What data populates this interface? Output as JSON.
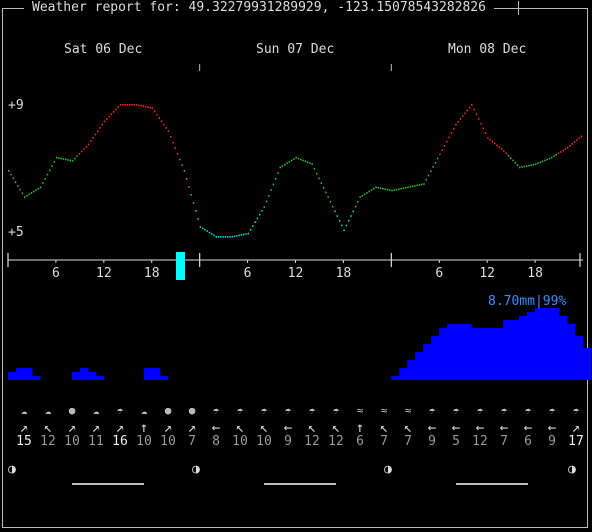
{
  "title": "Weather report for: 49.32279931289929, -123.15078543282826",
  "days": [
    "Sat 06 Dec",
    "Sun 07 Dec",
    "Mon 08 Dec"
  ],
  "temp_axis": {
    "max_label": "+9",
    "min_label": "+5",
    "max": 9,
    "min": 5
  },
  "hour_labels": [
    "6",
    "12",
    "18",
    "6",
    "12",
    "18",
    "6",
    "12",
    "18"
  ],
  "colors": {
    "warm": "#ff3030",
    "mild": "#2ecc40",
    "cold": "#22dddd",
    "precip": "#0000ff",
    "precip_text": "#3b8cff",
    "now_marker": "#00ffff"
  },
  "chart_data": {
    "type": "line",
    "temperature": {
      "x_hours": [
        0,
        2,
        4,
        6,
        8,
        10,
        12,
        14,
        16,
        18,
        20,
        22,
        24,
        26,
        28,
        30,
        32,
        34,
        36,
        38,
        40,
        42,
        44,
        46,
        48,
        50,
        52,
        54,
        56,
        58,
        60,
        62,
        64,
        66,
        68,
        70,
        72
      ],
      "values": [
        7.0,
        6.2,
        6.5,
        7.4,
        7.3,
        7.8,
        8.5,
        9.0,
        9.0,
        8.9,
        8.2,
        7.0,
        5.3,
        5.0,
        5.0,
        5.1,
        5.9,
        7.1,
        7.4,
        7.2,
        6.2,
        5.2,
        6.2,
        6.5,
        6.4,
        6.5,
        6.6,
        7.5,
        8.4,
        9.0,
        8.0,
        7.6,
        7.1,
        7.2,
        7.4,
        7.7,
        8.1
      ]
    },
    "precipitation": {
      "total_label": "8.70mm|99%",
      "x_hours": [
        0,
        1,
        2,
        3,
        4,
        5,
        6,
        7,
        8,
        9,
        10,
        11,
        12,
        13,
        14,
        15,
        16,
        17,
        18,
        19,
        20,
        21,
        22,
        23,
        24,
        48,
        49,
        50,
        51,
        52,
        53,
        54,
        55,
        56,
        57,
        58,
        59,
        60,
        61,
        62,
        63,
        64,
        65,
        66,
        67,
        68,
        69,
        70,
        71,
        72
      ],
      "values": [
        0.1,
        0.15,
        0.15,
        0.05,
        0.0,
        0.0,
        0.0,
        0.0,
        0.1,
        0.15,
        0.1,
        0.05,
        0.0,
        0.0,
        0.0,
        0.0,
        0.0,
        0.15,
        0.15,
        0.05,
        0.0,
        0.0,
        0.0,
        0.0,
        0.0,
        0.05,
        0.15,
        0.25,
        0.35,
        0.45,
        0.55,
        0.65,
        0.7,
        0.7,
        0.7,
        0.65,
        0.65,
        0.65,
        0.65,
        0.75,
        0.75,
        0.8,
        0.85,
        0.9,
        0.9,
        0.9,
        0.8,
        0.7,
        0.55,
        0.4
      ]
    }
  },
  "forecast": [
    {
      "icon": "fog",
      "dir": "↗",
      "speed": "15",
      "hi": true
    },
    {
      "icon": "fog",
      "dir": "↖",
      "speed": "12",
      "hi": false
    },
    {
      "icon": "sun",
      "dir": "↗",
      "speed": "10",
      "hi": false
    },
    {
      "icon": "fog",
      "dir": "↗",
      "speed": "11",
      "hi": false
    },
    {
      "icon": "rain",
      "dir": "↗",
      "speed": "16",
      "hi": true
    },
    {
      "icon": "fog",
      "dir": "↑",
      "speed": "10",
      "hi": false
    },
    {
      "icon": "sun",
      "dir": "↗",
      "speed": "10",
      "hi": false
    },
    {
      "icon": "sun",
      "dir": "↗",
      "speed": "7",
      "hi": false
    },
    {
      "icon": "rain",
      "dir": "←",
      "speed": "8",
      "hi": false
    },
    {
      "icon": "rain",
      "dir": "↖",
      "speed": "10",
      "hi": false
    },
    {
      "icon": "rain",
      "dir": "↖",
      "speed": "10",
      "hi": false
    },
    {
      "icon": "rain",
      "dir": "←",
      "speed": "9",
      "hi": false
    },
    {
      "icon": "rain",
      "dir": "↖",
      "speed": "12",
      "hi": false
    },
    {
      "icon": "rain",
      "dir": "↖",
      "speed": "12",
      "hi": false
    },
    {
      "icon": "wind",
      "dir": "↑",
      "speed": "6",
      "hi": false
    },
    {
      "icon": "wind",
      "dir": "↖",
      "speed": "7",
      "hi": false
    },
    {
      "icon": "wind",
      "dir": "↖",
      "speed": "7",
      "hi": false
    },
    {
      "icon": "rain",
      "dir": "←",
      "speed": "9",
      "hi": false
    },
    {
      "icon": "rain",
      "dir": "←",
      "speed": "5",
      "hi": false
    },
    {
      "icon": "rain",
      "dir": "←",
      "speed": "12",
      "hi": false
    },
    {
      "icon": "rain",
      "dir": "←",
      "speed": "7",
      "hi": false
    },
    {
      "icon": "rain",
      "dir": "←",
      "speed": "6",
      "hi": false
    },
    {
      "icon": "rain",
      "dir": "←",
      "speed": "9",
      "hi": false
    },
    {
      "icon": "rain",
      "dir": "↗",
      "speed": "17",
      "hi": true
    }
  ],
  "moon_glyph": "◑"
}
